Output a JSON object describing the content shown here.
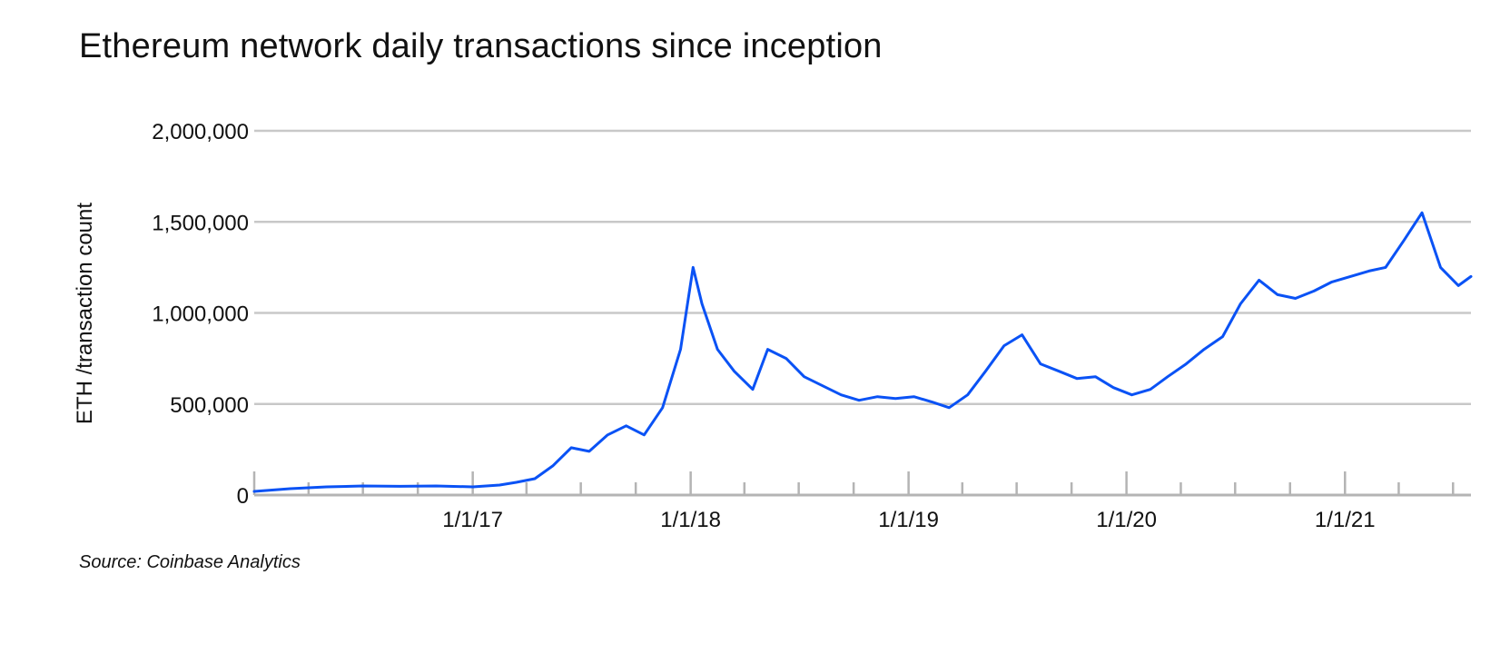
{
  "chart_data": {
    "type": "line",
    "title": "Ethereum network daily transactions since inception",
    "source": "Source: Coinbase Analytics",
    "xlabel": "",
    "ylabel": "ETH /transaction count",
    "x_range": [
      "2016-01-01",
      "2021-07-31"
    ],
    "ylim": [
      0,
      2000000
    ],
    "y_ticks": [
      0,
      500000,
      1000000,
      1500000,
      2000000
    ],
    "y_tick_labels": [
      "0",
      "500,000",
      "1,000,000",
      "1,500,000",
      "2,000,000"
    ],
    "x_ticks": [
      "2017-01-01",
      "2018-01-01",
      "2019-01-01",
      "2020-01-01",
      "2021-01-01"
    ],
    "x_tick_labels": [
      "1/1/17",
      "1/1/18",
      "1/1/19",
      "1/1/20",
      "1/1/21"
    ],
    "grid": true,
    "colors": {
      "line": "#0a52f5",
      "grid": "#c8c8c8",
      "axis": "#b4b4b4"
    },
    "series": [
      {
        "x": [
          "2016-01-01",
          "2016-03-01",
          "2016-05-01",
          "2016-07-01",
          "2016-09-01",
          "2016-11-01",
          "2017-01-01",
          "2017-02-15",
          "2017-03-15",
          "2017-04-15",
          "2017-05-15",
          "2017-06-15",
          "2017-07-15",
          "2017-08-15",
          "2017-09-15",
          "2017-10-15",
          "2017-11-15",
          "2017-12-15",
          "2018-01-05",
          "2018-01-20",
          "2018-02-15",
          "2018-03-15",
          "2018-04-15",
          "2018-05-10",
          "2018-06-10",
          "2018-07-10",
          "2018-08-10",
          "2018-09-10",
          "2018-10-10",
          "2018-11-10",
          "2018-12-10",
          "2019-01-10",
          "2019-02-10",
          "2019-03-10",
          "2019-04-10",
          "2019-05-10",
          "2019-06-10",
          "2019-07-10",
          "2019-08-10",
          "2019-09-10",
          "2019-10-10",
          "2019-11-10",
          "2019-12-10",
          "2020-01-10",
          "2020-02-10",
          "2020-03-10",
          "2020-04-10",
          "2020-05-10",
          "2020-06-10",
          "2020-07-10",
          "2020-08-10",
          "2020-09-10",
          "2020-10-10",
          "2020-11-10",
          "2020-12-10",
          "2021-01-10",
          "2021-02-10",
          "2021-03-10",
          "2021-04-10",
          "2021-05-10",
          "2021-06-10",
          "2021-07-10",
          "2021-07-31"
        ],
        "values": [
          20000,
          35000,
          45000,
          50000,
          48000,
          50000,
          45000,
          55000,
          70000,
          90000,
          160000,
          260000,
          240000,
          330000,
          380000,
          330000,
          480000,
          800000,
          1250000,
          1050000,
          800000,
          680000,
          580000,
          800000,
          750000,
          650000,
          600000,
          550000,
          520000,
          540000,
          530000,
          540000,
          510000,
          480000,
          550000,
          680000,
          820000,
          880000,
          720000,
          680000,
          640000,
          650000,
          590000,
          550000,
          580000,
          650000,
          720000,
          800000,
          870000,
          1050000,
          1180000,
          1100000,
          1080000,
          1120000,
          1170000,
          1200000,
          1230000,
          1250000,
          1400000,
          1550000,
          1250000,
          1150000,
          1200000
        ]
      }
    ]
  }
}
